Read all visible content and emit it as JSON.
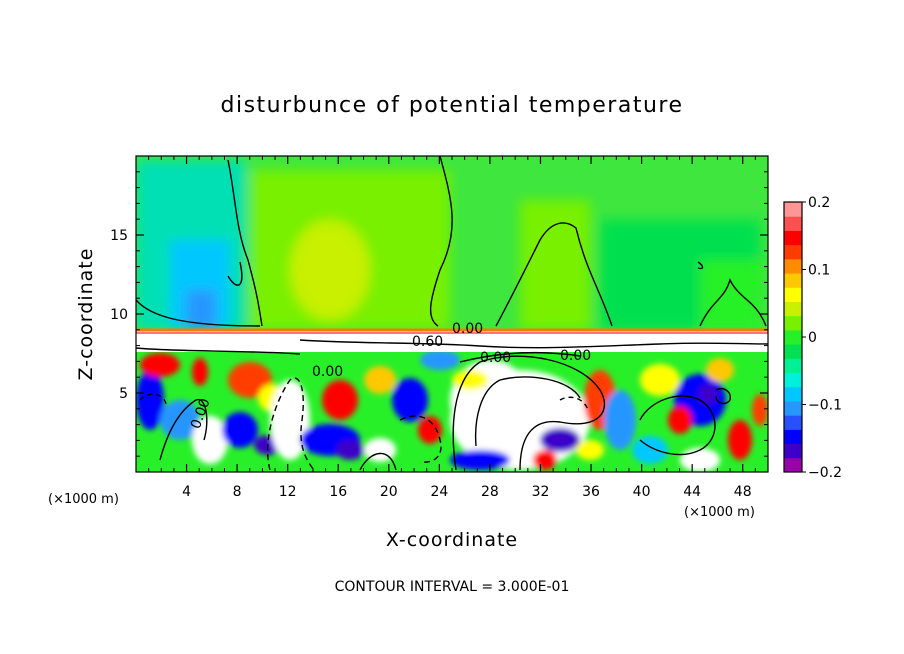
{
  "chart_data": {
    "type": "heatmap",
    "title": "disturbunce of potential temperature",
    "xlabel": "X-coordinate",
    "ylabel": "Z-coordinate",
    "x_unit_left": "(×1000 m)",
    "x_unit_right": "(×1000 m)",
    "xlim": [
      0,
      50
    ],
    "ylim": [
      0,
      20
    ],
    "x_ticks": [
      4,
      8,
      12,
      16,
      20,
      24,
      28,
      32,
      36,
      40,
      44,
      48
    ],
    "y_ticks": [
      5,
      10,
      15
    ],
    "colorbar": {
      "range": [
        -0.2,
        0.2
      ],
      "ticks": [
        0.2,
        0.1,
        0,
        -0.1,
        -0.2
      ],
      "tick_labels": [
        "0.2",
        "0.1",
        "0",
        "−0.1",
        "−0.2"
      ],
      "colors": [
        "#9900aa",
        "#3c00c8",
        "#0000ff",
        "#2850ff",
        "#2896ff",
        "#00c8ff",
        "#00f0dc",
        "#00f098",
        "#00e050",
        "#28f028",
        "#78f000",
        "#c8f000",
        "#ffff00",
        "#ffc800",
        "#ff8c00",
        "#ff3c00",
        "#ff0000",
        "#ff5050",
        "#ff9696"
      ]
    },
    "contour_labels": [
      "0.00",
      "0.60",
      "0.00",
      "0.00",
      "0.00",
      "0.00"
    ],
    "footer": "CONTOUR INTERVAL = 3.000E-01"
  }
}
